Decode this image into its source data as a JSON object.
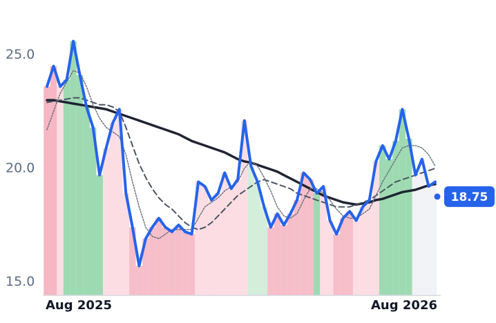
{
  "chart_data": {
    "type": "line",
    "categories": [
      "Aug 2025",
      null,
      null,
      null,
      null,
      null,
      null,
      null,
      null,
      null,
      null,
      null,
      null,
      null,
      null,
      null,
      null,
      null,
      null,
      null,
      null,
      null,
      null,
      null,
      null,
      null,
      null,
      null,
      null,
      null,
      null,
      null,
      null,
      null,
      null,
      null,
      null,
      null,
      null,
      null,
      null,
      null,
      null,
      null,
      null,
      null,
      null,
      null,
      null,
      null,
      null,
      null,
      null,
      null,
      null,
      null,
      null,
      null,
      null,
      "Aug 2026"
    ],
    "ylim": [
      14.4,
      26.5
    ],
    "yticks": [
      {
        "value": 15,
        "label": "15.0"
      },
      {
        "value": 20,
        "label": "20.0"
      },
      {
        "value": 25,
        "label": "25.0"
      }
    ],
    "band_colors": [
      "#f5a9b8",
      "#f5a9b8",
      "#fbd7de",
      "#8dd3a3",
      "#8dd3a3",
      "#8dd3a3",
      "#8dd3a3",
      "#8dd3a3",
      "#8dd3a3",
      "#fbd7de",
      "#fbd7de",
      "#fbd7de",
      "#fbd7de",
      "#f5b3c0",
      "#f5b3c0",
      "#f5b3c0",
      "#f5b3c0",
      "#f5b3c0",
      "#f5b3c0",
      "#f5b3c0",
      "#f5b3c0",
      "#f5b3c0",
      "#f5b3c0",
      "#fbd7de",
      "#fbd7de",
      "#fbd7de",
      "#fbd7de",
      "#fbd7de",
      "#fbd7de",
      "#fbd7de",
      "#fbd7de",
      "#cdebd6",
      "#cdebd6",
      "#cdebd6",
      "#f5b3c0",
      "#f5b3c0",
      "#f5b3c0",
      "#f5b3c0",
      "#f5b3c0",
      "#f5b3c0",
      "#f5b3c0",
      "#8dd3a3",
      "#fbd7de",
      "#fbd7de",
      "#f5b3c0",
      "#f5b3c0",
      "#f5b3c0",
      "#fbd7de",
      "#fbd7de",
      "#fbd7de",
      "#fbd7de",
      "#8dd3a3",
      "#8dd3a3",
      "#8dd3a3",
      "#8dd3a3",
      "#8dd3a3",
      "#eef0f5",
      "#eef0f5",
      "#eef0f5",
      "#eef0f5"
    ],
    "series": [
      {
        "color": "#1e2433",
        "width": 3.5,
        "dash": "none",
        "values": [
          23.0,
          23.0,
          22.95,
          22.9,
          22.85,
          22.8,
          22.75,
          22.7,
          22.65,
          22.6,
          22.5,
          22.4,
          22.3,
          22.2,
          22.1,
          22.0,
          21.9,
          21.8,
          21.7,
          21.6,
          21.5,
          21.35,
          21.2,
          21.1,
          21.0,
          20.9,
          20.8,
          20.7,
          20.55,
          20.4,
          20.3,
          20.25,
          20.15,
          20.05,
          19.95,
          19.85,
          19.7,
          19.55,
          19.4,
          19.25,
          19.1,
          18.95,
          18.8,
          18.7,
          18.6,
          18.5,
          18.45,
          18.4,
          18.45,
          18.5,
          18.6,
          18.65,
          18.75,
          18.85,
          18.95,
          19.0,
          19.05,
          19.15,
          19.25,
          19.3
        ]
      },
      {
        "color": "#4b5563",
        "width": 2,
        "dash": "8 5",
        "values": [
          22.9,
          22.95,
          23.0,
          23.05,
          23.1,
          23.1,
          23.0,
          22.9,
          22.8,
          22.8,
          22.7,
          22.5,
          21.8,
          21.0,
          20.2,
          19.6,
          19.1,
          18.7,
          18.4,
          18.2,
          17.9,
          17.6,
          17.4,
          17.3,
          17.4,
          17.6,
          17.9,
          18.2,
          18.5,
          18.8,
          19.0,
          19.2,
          19.4,
          19.5,
          19.4,
          19.3,
          19.2,
          19.1,
          18.9,
          18.8,
          18.7,
          18.6,
          18.5,
          18.4,
          18.3,
          18.3,
          18.3,
          18.4,
          18.5,
          18.6,
          18.8,
          19.0,
          19.2,
          19.4,
          19.5,
          19.6,
          19.7,
          19.8,
          19.9,
          20.0
        ]
      },
      {
        "color": "#6b7280",
        "width": 1.5,
        "dash": "2 2",
        "values": [
          21.7,
          22.5,
          23.3,
          23.8,
          24.3,
          24.2,
          23.6,
          22.8,
          22.2,
          21.8,
          21.6,
          21.4,
          20.6,
          19.4,
          18.3,
          17.4,
          17.0,
          16.9,
          17.1,
          17.3,
          17.3,
          17.3,
          17.3,
          17.8,
          18.3,
          18.5,
          18.7,
          19.0,
          19.2,
          19.4,
          20.0,
          20.3,
          20.1,
          19.6,
          19.0,
          18.3,
          17.9,
          17.8,
          18.0,
          18.6,
          19.1,
          19.1,
          18.9,
          18.6,
          18.2,
          17.9,
          17.8,
          17.8,
          18.0,
          18.2,
          18.8,
          19.4,
          19.9,
          20.4,
          20.9,
          21.0,
          21.0,
          20.9,
          20.6,
          20.1
        ]
      },
      {
        "color": "#2563eb",
        "width": 4,
        "dash": "none",
        "values": [
          23.6,
          24.5,
          23.6,
          23.9,
          25.6,
          24.1,
          22.7,
          21.8,
          19.7,
          20.9,
          22.0,
          22.6,
          18.9,
          17.4,
          15.7,
          16.9,
          17.4,
          17.8,
          17.4,
          17.2,
          17.5,
          17.2,
          17.1,
          19.4,
          19.2,
          18.6,
          18.9,
          19.8,
          19.1,
          19.5,
          22.1,
          20.1,
          19.4,
          18.3,
          17.4,
          18.0,
          17.5,
          18.0,
          18.6,
          19.8,
          19.5,
          18.9,
          19.2,
          17.7,
          17.1,
          17.8,
          18.1,
          17.7,
          18.3,
          18.6,
          20.3,
          21.0,
          20.4,
          21.2,
          22.6,
          21.3,
          19.7,
          20.4,
          19.2,
          19.4
        ]
      }
    ],
    "band_series": 3,
    "current": {
      "value": 18.75,
      "color": "#2563eb"
    }
  }
}
